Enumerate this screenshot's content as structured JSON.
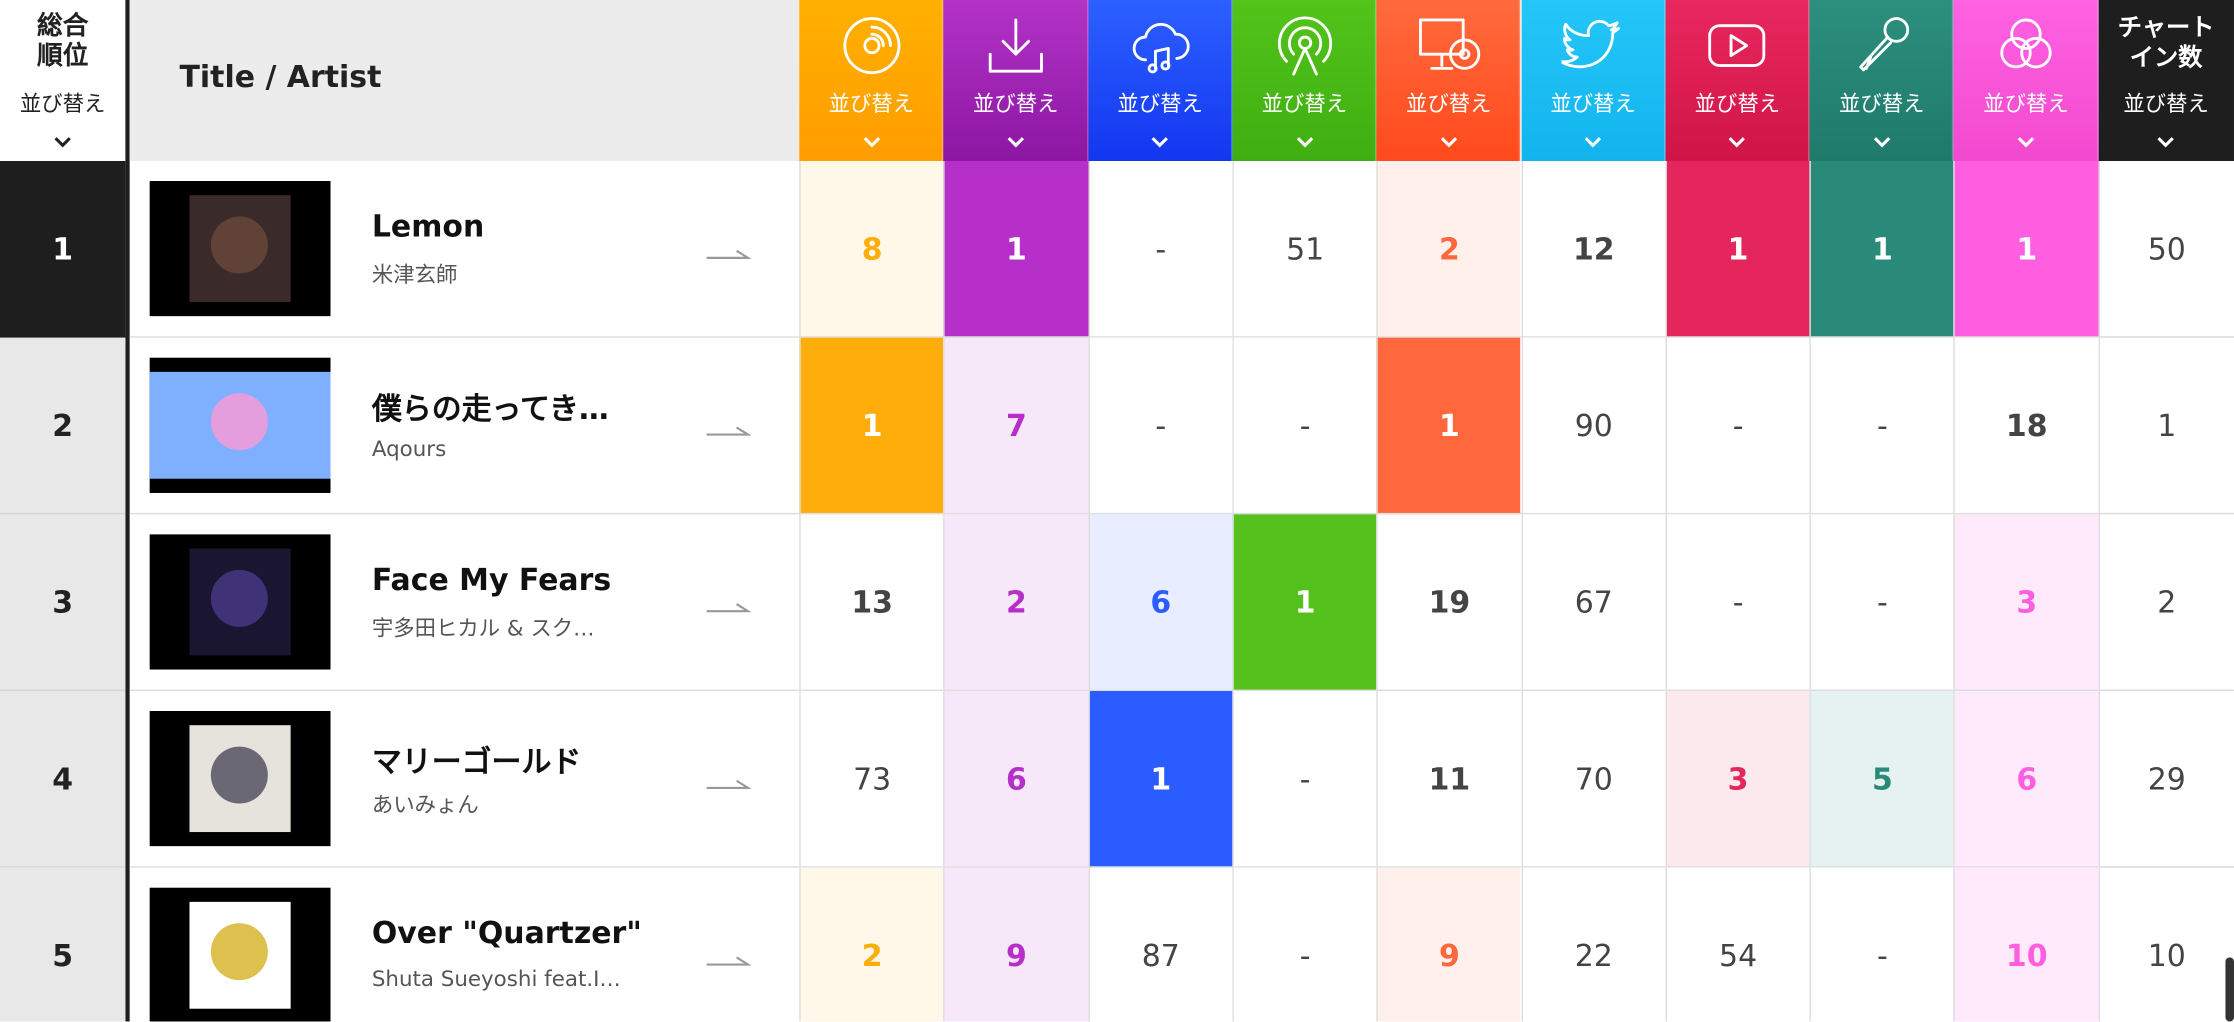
{
  "header": {
    "rank_label": "総合順位",
    "title_label": "Title / Artist",
    "sort_label": "並び替え",
    "chart_in_label": "チャートイン数"
  },
  "rows": [
    {
      "rank": 1,
      "title": "Lemon",
      "artist": "米津玄師",
      "cells": [
        8,
        1,
        "-",
        51,
        2,
        12,
        1,
        1,
        1
      ],
      "chart_in": 50
    },
    {
      "rank": 2,
      "title": "僕らの走ってき…",
      "artist": "Aqours",
      "cells": [
        1,
        7,
        "-",
        "-",
        1,
        90,
        "-",
        "-",
        18
      ],
      "chart_in": 1
    },
    {
      "rank": 3,
      "title": "Face My Fears",
      "artist": "宇多田ヒカル & スク…",
      "cells": [
        13,
        2,
        6,
        1,
        19,
        67,
        "-",
        "-",
        3
      ],
      "chart_in": 2
    },
    {
      "rank": 4,
      "title": "マリーゴールド",
      "artist": "あいみょん",
      "cells": [
        73,
        6,
        1,
        "-",
        11,
        70,
        3,
        5,
        6
      ],
      "chart_in": 29
    },
    {
      "rank": 5,
      "title": "Over \"Quartzer\"",
      "artist": "Shuta Sueyoshi feat.I…",
      "cells": [
        2,
        9,
        87,
        "-",
        9,
        22,
        54,
        "-",
        10
      ],
      "chart_in": 10
    }
  ]
}
